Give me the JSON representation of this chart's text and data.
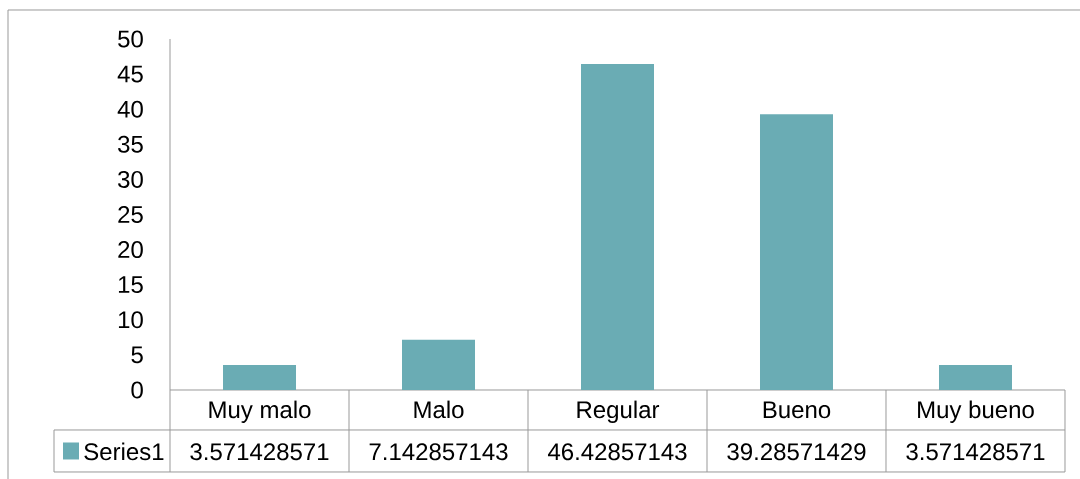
{
  "chart_data": {
    "type": "bar",
    "categories": [
      "Muy malo",
      "Malo",
      "Regular",
      "Bueno",
      "Muy bueno"
    ],
    "series": [
      {
        "name": "Series1",
        "color": "#6aacb4",
        "values": [
          3.571428571,
          7.142857143,
          46.42857143,
          39.28571429,
          3.571428571
        ]
      }
    ],
    "ylim": [
      0,
      50
    ],
    "yticks": [
      0,
      5,
      10,
      15,
      20,
      25,
      30,
      35,
      40,
      45,
      50
    ],
    "legend": "bottom",
    "data_labels": true
  }
}
